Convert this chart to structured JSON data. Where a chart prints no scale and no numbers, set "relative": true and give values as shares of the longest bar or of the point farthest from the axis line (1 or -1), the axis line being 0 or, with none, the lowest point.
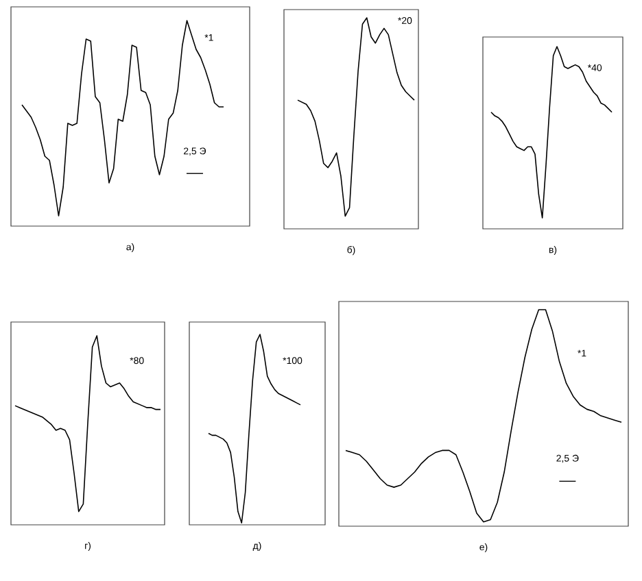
{
  "chart_data": [
    {
      "type": "line",
      "relative": true,
      "xlabel": "а)",
      "annotations": [
        "*1",
        "2,5 Э"
      ],
      "categories": [
        null,
        null,
        null,
        null,
        null,
        null,
        null,
        null,
        null,
        null,
        null,
        null,
        null,
        null,
        null,
        null,
        null,
        null,
        null,
        null,
        null,
        null,
        null,
        null,
        null,
        null,
        null,
        null,
        null,
        null,
        null,
        null,
        null,
        null,
        null,
        null,
        null,
        null,
        null,
        null,
        null,
        null,
        null,
        null,
        null
      ],
      "series": [
        {
          "color": "#000000",
          "values": [
            0.59,
            0.56,
            0.53,
            0.48,
            0.42,
            0.34,
            0.32,
            0.2,
            0.05,
            0.19,
            0.5,
            0.49,
            0.5,
            0.74,
            0.91,
            0.9,
            0.63,
            0.6,
            0.42,
            0.21,
            0.28,
            0.52,
            0.51,
            0.64,
            0.88,
            0.87,
            0.66,
            0.65,
            0.59,
            0.34,
            0.25,
            0.34,
            0.52,
            0.55,
            0.66,
            0.88,
            1,
            0.93,
            0.86,
            0.82,
            0.76,
            0.69,
            0.6,
            0.58,
            0.58
          ]
        }
      ]
    },
    {
      "type": "line",
      "relative": true,
      "xlabel": "б)",
      "annotations": [
        "*20"
      ],
      "categories": [
        null,
        null,
        null,
        null,
        null,
        null,
        null,
        null,
        null,
        null,
        null,
        null,
        null,
        null,
        null,
        null,
        null,
        null,
        null,
        null,
        null,
        null,
        null,
        null,
        null,
        null,
        null,
        null
      ],
      "series": [
        {
          "color": "#000000",
          "values": [
            0.61,
            0.6,
            0.59,
            0.56,
            0.51,
            0.42,
            0.31,
            0.29,
            0.32,
            0.36,
            0.25,
            0.06,
            0.1,
            0.44,
            0.75,
            0.97,
            1,
            0.91,
            0.88,
            0.92,
            0.95,
            0.92,
            0.83,
            0.74,
            0.68,
            0.65,
            0.63,
            0.61
          ]
        }
      ]
    },
    {
      "type": "line",
      "relative": true,
      "xlabel": "в)",
      "annotations": [
        "*40"
      ],
      "categories": [
        null,
        null,
        null,
        null,
        null,
        null,
        null,
        null,
        null,
        null,
        null,
        null,
        null,
        null,
        null,
        null,
        null,
        null,
        null,
        null,
        null,
        null,
        null,
        null,
        null,
        null,
        null,
        null,
        null,
        null,
        null,
        null,
        null,
        null
      ],
      "series": [
        {
          "color": "#000000",
          "values": [
            0.64,
            0.62,
            0.61,
            0.59,
            0.56,
            0.52,
            0.48,
            0.45,
            0.44,
            0.43,
            0.45,
            0.45,
            0.41,
            0.19,
            0.06,
            0.35,
            0.67,
            0.95,
            1,
            0.95,
            0.89,
            0.88,
            0.89,
            0.9,
            0.89,
            0.86,
            0.81,
            0.78,
            0.75,
            0.73,
            0.69,
            0.68,
            0.66,
            0.64
          ]
        }
      ]
    },
    {
      "type": "line",
      "relative": true,
      "xlabel": "г)",
      "annotations": [
        "*80"
      ],
      "categories": [
        null,
        null,
        null,
        null,
        null,
        null,
        null,
        null,
        null,
        null,
        null,
        null,
        null,
        null,
        null,
        null,
        null,
        null,
        null,
        null,
        null,
        null,
        null,
        null,
        null,
        null,
        null,
        null,
        null,
        null,
        null,
        null,
        null
      ],
      "series": [
        {
          "color": "#000000",
          "values": [
            0.63,
            0.62,
            0.61,
            0.6,
            0.59,
            0.58,
            0.57,
            0.55,
            0.53,
            0.5,
            0.51,
            0.5,
            0.45,
            0.27,
            0.07,
            0.11,
            0.54,
            0.94,
            1,
            0.84,
            0.75,
            0.73,
            0.74,
            0.75,
            0.72,
            0.68,
            0.65,
            0.64,
            0.63,
            0.62,
            0.62,
            0.61,
            0.61
          ]
        }
      ]
    },
    {
      "type": "line",
      "relative": true,
      "xlabel": "д)",
      "annotations": [
        "*100"
      ],
      "categories": [
        null,
        null,
        null,
        null,
        null,
        null,
        null,
        null,
        null,
        null,
        null,
        null,
        null,
        null,
        null,
        null,
        null,
        null,
        null,
        null,
        null,
        null,
        null,
        null,
        null,
        null
      ],
      "series": [
        {
          "color": "#000000",
          "values": [
            0.48,
            0.47,
            0.47,
            0.46,
            0.45,
            0.43,
            0.38,
            0.25,
            0.07,
            0.01,
            0.17,
            0.48,
            0.76,
            0.96,
            1,
            0.91,
            0.78,
            0.74,
            0.71,
            0.69,
            0.68,
            0.67,
            0.66,
            0.65,
            0.64,
            0.63
          ]
        }
      ]
    },
    {
      "type": "line",
      "relative": true,
      "xlabel": "е)",
      "annotations": [
        "*1",
        "2,5 Э"
      ],
      "categories": [
        null,
        null,
        null,
        null,
        null,
        null,
        null,
        null,
        null,
        null,
        null,
        null,
        null,
        null,
        null,
        null,
        null,
        null,
        null,
        null,
        null,
        null,
        null,
        null,
        null,
        null,
        null,
        null,
        null,
        null,
        null,
        null,
        null,
        null,
        null,
        null,
        null,
        null,
        null,
        null,
        null
      ],
      "series": [
        {
          "color": "#000000",
          "values": [
            0.35,
            0.34,
            0.33,
            0.3,
            0.26,
            0.22,
            0.19,
            0.18,
            0.19,
            0.22,
            0.25,
            0.29,
            0.32,
            0.34,
            0.35,
            0.35,
            0.33,
            0.25,
            0.16,
            0.06,
            0.02,
            0.03,
            0.11,
            0.25,
            0.44,
            0.62,
            0.78,
            0.91,
            1,
            1,
            0.9,
            0.76,
            0.66,
            0.6,
            0.56,
            0.54,
            0.53,
            0.51,
            0.5,
            0.49,
            0.48
          ]
        }
      ]
    }
  ]
}
